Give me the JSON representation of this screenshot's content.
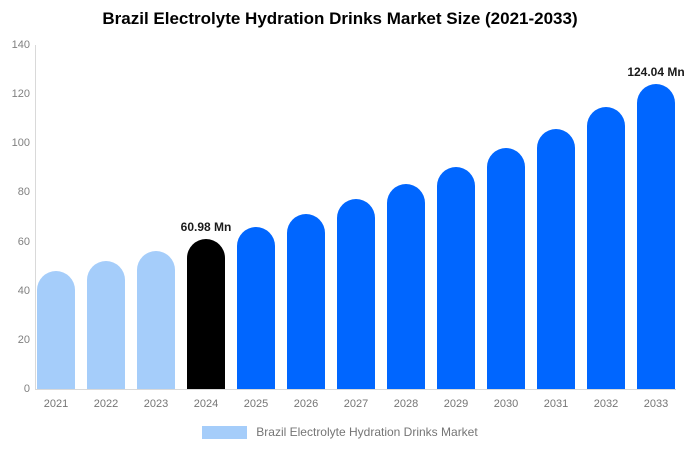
{
  "title": "Brazil Electrolyte Hydration Drinks Market Size (2021-2033)",
  "legend": {
    "label": "Brazil Electrolyte Hydration Drinks Market",
    "swatch_color": "#A5CDFA"
  },
  "chart_data": {
    "type": "bar",
    "title": "Brazil Electrolyte Hydration Drinks Market Size (2021-2033)",
    "xlabel": "",
    "ylabel": "",
    "categories": [
      "2021",
      "2022",
      "2023",
      "2024",
      "2025",
      "2026",
      "2027",
      "2028",
      "2029",
      "2030",
      "2031",
      "2032",
      "2033"
    ],
    "values": [
      48.1,
      52.1,
      56.3,
      60.98,
      66.0,
      71.4,
      77.3,
      83.6,
      90.5,
      97.9,
      106.0,
      114.7,
      124.04
    ],
    "bar_colors": [
      "#A5CDFA",
      "#A5CDFA",
      "#A5CDFA",
      "#000000",
      "#0066FF",
      "#0066FF",
      "#0066FF",
      "#0066FF",
      "#0066FF",
      "#0066FF",
      "#0066FF",
      "#0066FF",
      "#0066FF"
    ],
    "annotations": [
      {
        "index": 3,
        "text": "60.98 Mn"
      },
      {
        "index": 12,
        "text": "124.04 Mn"
      }
    ],
    "ylim": [
      0,
      140
    ],
    "yticks": [
      0,
      20,
      40,
      60,
      80,
      100,
      120,
      140
    ],
    "grid": false,
    "legend_position": "bottom",
    "colors": {
      "historic_bars": "#A5CDFA",
      "base_year_bar": "#000000",
      "forecast_bars": "#0066FF",
      "axis_line": "#d9d9d9",
      "tick_text": "#808080",
      "annotation_text": "#1a1a1a"
    }
  }
}
